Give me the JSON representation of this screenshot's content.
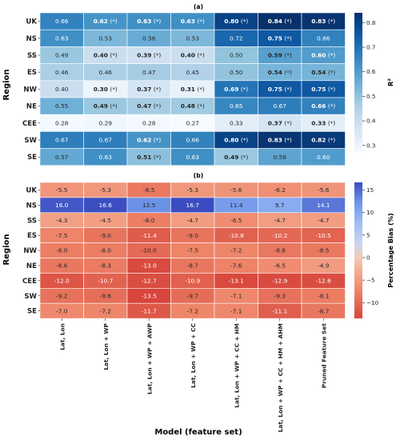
{
  "figure": {
    "xlabel": "Model (feature set)",
    "models": [
      "Lat, Lon",
      "Lat, Lon + WP",
      "Lat, Lon + WP + AWP",
      "Lat, Lon + WP + CC",
      "Lat, Lon + WP + CC + HM",
      "Lat, Lon + WP + CC + HM + AHM",
      "Pruned Feature Set"
    ],
    "regions": [
      "UK",
      "NS",
      "SS",
      "ES",
      "NW",
      "NE",
      "CEE",
      "SW",
      "SE"
    ],
    "ylabel": "Region"
  },
  "chart_data": [
    {
      "type": "heatmap",
      "title": "(a)",
      "colorbar": {
        "label": "R²",
        "range": [
          0.27,
          0.84
        ],
        "ticks": [
          0.3,
          0.4,
          0.5,
          0.6,
          0.7,
          0.8
        ],
        "colormap": "Blues"
      },
      "values": [
        [
          0.66,
          0.62,
          0.63,
          0.63,
          0.8,
          0.84,
          0.83
        ],
        [
          0.63,
          0.53,
          0.56,
          0.53,
          0.72,
          0.75,
          0.66
        ],
        [
          0.49,
          0.4,
          0.39,
          0.4,
          0.5,
          0.59,
          0.6
        ],
        [
          0.46,
          0.46,
          0.47,
          0.45,
          0.5,
          0.54,
          0.54
        ],
        [
          0.4,
          0.3,
          0.37,
          0.31,
          0.69,
          0.75,
          0.75
        ],
        [
          0.55,
          0.49,
          0.47,
          0.48,
          0.65,
          0.67,
          0.66
        ],
        [
          0.28,
          0.29,
          0.28,
          0.27,
          0.33,
          0.37,
          0.33
        ],
        [
          0.67,
          0.67,
          0.62,
          0.66,
          0.8,
          0.83,
          0.82
        ],
        [
          0.57,
          0.63,
          0.51,
          0.63,
          0.49,
          0.58,
          0.6
        ]
      ],
      "labels": [
        [
          "0.66",
          "0.62 (*)",
          "0.63 (*)",
          "0.63 (*)",
          "0.80 (*)",
          "0.84 (*)",
          "0.83 (*)"
        ],
        [
          "0.63",
          "0.53",
          "0.56",
          "0.53",
          "0.72",
          "0.75 (*)",
          "0.66"
        ],
        [
          "0.49",
          "0.40 (*)",
          "0.39 (*)",
          "0.40 (*)",
          "0.50",
          "0.59 (*)",
          "0.60 (*)"
        ],
        [
          "0.46",
          "0.46",
          "0.47",
          "0.45",
          "0.50",
          "0.54 (*)",
          "0.54 (*)"
        ],
        [
          "0.40",
          "0.30 (*)",
          "0.37 (*)",
          "0.31 (*)",
          "0.69 (*)",
          "0.75 (*)",
          "0.75 (*)"
        ],
        [
          "0.55",
          "0.49 (*)",
          "0.47 (*)",
          "0.48 (*)",
          "0.65",
          "0.67",
          "0.66 (*)"
        ],
        [
          "0.28",
          "0.29",
          "0.28",
          "0.27",
          "0.33",
          "0.37 (*)",
          "0.33 (*)"
        ],
        [
          "0.67",
          "0.67",
          "0.62 (*)",
          "0.66",
          "0.80 (*)",
          "0.83 (*)",
          "0.82 (*)"
        ],
        [
          "0.57",
          "0.63",
          "0.51 (*)",
          "0.63",
          "0.49 (*)",
          "0.58",
          "0.60"
        ]
      ]
    },
    {
      "type": "heatmap",
      "title": "(b)",
      "colorbar": {
        "label": "Percentage Bias (%)",
        "range": [
          -13.5,
          16.7
        ],
        "ticks": [
          -10,
          -5,
          0,
          5,
          10,
          15
        ],
        "colormap": "coolwarm_r"
      },
      "values": [
        [
          -5.5,
          -5.3,
          -8.5,
          -5.3,
          -5.6,
          -6.2,
          -5.6
        ],
        [
          16.0,
          16.6,
          12.5,
          16.7,
          11.4,
          9.7,
          14.1
        ],
        [
          -4.3,
          -4.5,
          -8.0,
          -4.7,
          -6.5,
          -4.7,
          -4.7
        ],
        [
          -7.5,
          -9.0,
          -11.4,
          -9.0,
          -10.8,
          -10.2,
          -10.5
        ],
        [
          -8.0,
          -8.0,
          -10.0,
          -7.5,
          -7.2,
          -8.6,
          -8.5
        ],
        [
          -8.6,
          -8.3,
          -13.0,
          -8.7,
          -7.6,
          -6.5,
          -4.9
        ],
        [
          -12.0,
          -10.7,
          -12.7,
          -10.9,
          -13.1,
          -12.9,
          -12.6
        ],
        [
          -9.2,
          -9.6,
          -13.5,
          -9.7,
          -7.1,
          -9.3,
          -8.1
        ],
        [
          -7.0,
          -7.2,
          -11.7,
          -7.2,
          -7.1,
          -11.1,
          -8.7
        ]
      ],
      "labels": [
        [
          "-5.5",
          "-5.3",
          "-8.5",
          "-5.3",
          "-5.6",
          "-6.2",
          "-5.6"
        ],
        [
          "16.0",
          "16.6",
          "12.5",
          "16.7",
          "11.4",
          "9.7",
          "14.1"
        ],
        [
          "-4.3",
          "-4.5",
          "-8.0",
          "-4.7",
          "-6.5",
          "-4.7",
          "-4.7"
        ],
        [
          "-7.5",
          "-9.0",
          "-11.4",
          "-9.0",
          "-10.8",
          "-10.2",
          "-10.5"
        ],
        [
          "-8.0",
          "-8.0",
          "-10.0",
          "-7.5",
          "-7.2",
          "-8.6",
          "-8.5"
        ],
        [
          "-8.6",
          "-8.3",
          "-13.0",
          "-8.7",
          "-7.6",
          "-6.5",
          "-4.9"
        ],
        [
          "-12.0",
          "-10.7",
          "-12.7",
          "-10.9",
          "-13.1",
          "-12.9",
          "-12.6"
        ],
        [
          "-9.2",
          "-9.6",
          "-13.5",
          "-9.7",
          "-7.1",
          "-9.3",
          "-8.1"
        ],
        [
          "-7.0",
          "-7.2",
          "-11.7",
          "-7.2",
          "-7.1",
          "-11.1",
          "-8.7"
        ]
      ]
    }
  ]
}
